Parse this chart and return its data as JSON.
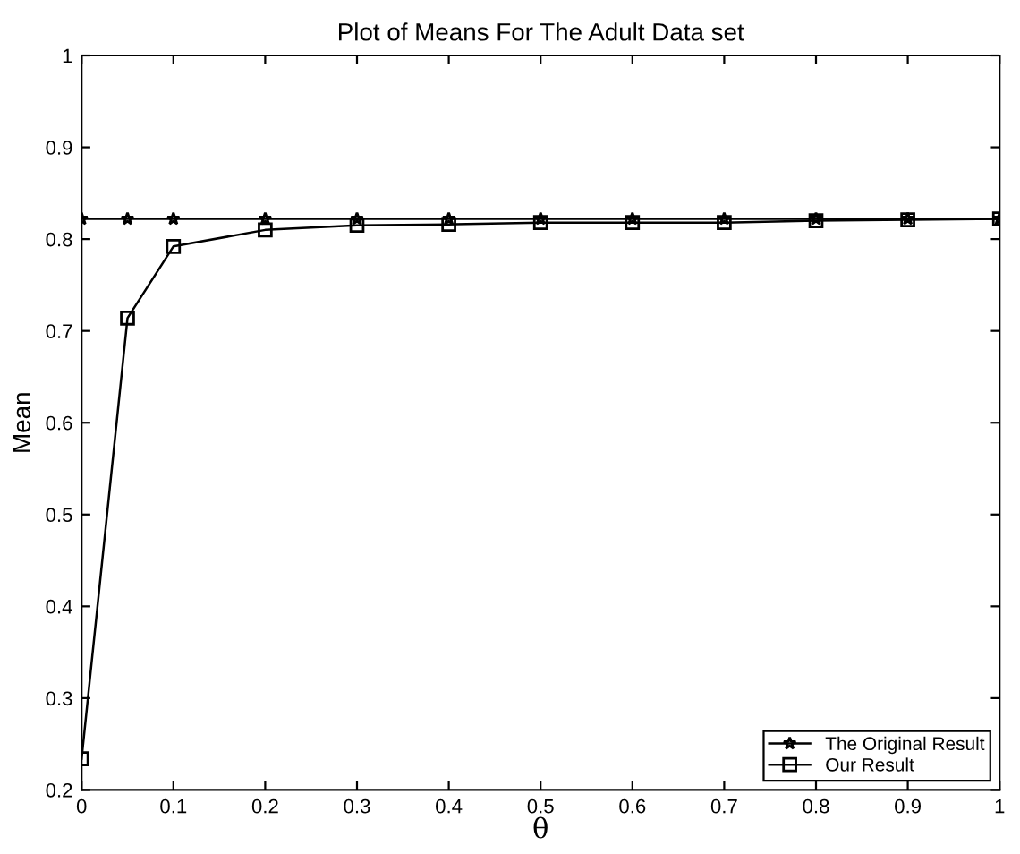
{
  "chart_data": {
    "type": "line",
    "title": "Plot of Means For The Adult Data set",
    "xlabel": "θ",
    "ylabel": "Mean",
    "x": [
      0,
      0.05,
      0.1,
      0.2,
      0.3,
      0.4,
      0.5,
      0.6,
      0.7,
      0.8,
      0.9,
      1.0
    ],
    "series": [
      {
        "name": "The Original Result",
        "color": "#000000",
        "marker": "star",
        "values": [
          0.822,
          0.822,
          0.822,
          0.822,
          0.822,
          0.822,
          0.822,
          0.822,
          0.822,
          0.822,
          0.822,
          0.822
        ]
      },
      {
        "name": "Our Result",
        "color": "#000000",
        "marker": "square",
        "values": [
          0.234,
          0.714,
          0.792,
          0.81,
          0.815,
          0.816,
          0.818,
          0.818,
          0.818,
          0.82,
          0.821,
          0.822
        ]
      }
    ],
    "xlim": [
      0,
      1
    ],
    "xticks": [
      0,
      0.1,
      0.2,
      0.3,
      0.4,
      0.5,
      0.6,
      0.7,
      0.8,
      0.9,
      1
    ],
    "ylim": [
      0.2,
      1
    ],
    "yticks": [
      0.2,
      0.3,
      0.4,
      0.5,
      0.6,
      0.7,
      0.8,
      0.9,
      1
    ],
    "grid": false,
    "legend": "bottom right",
    "line_style": "solid"
  }
}
